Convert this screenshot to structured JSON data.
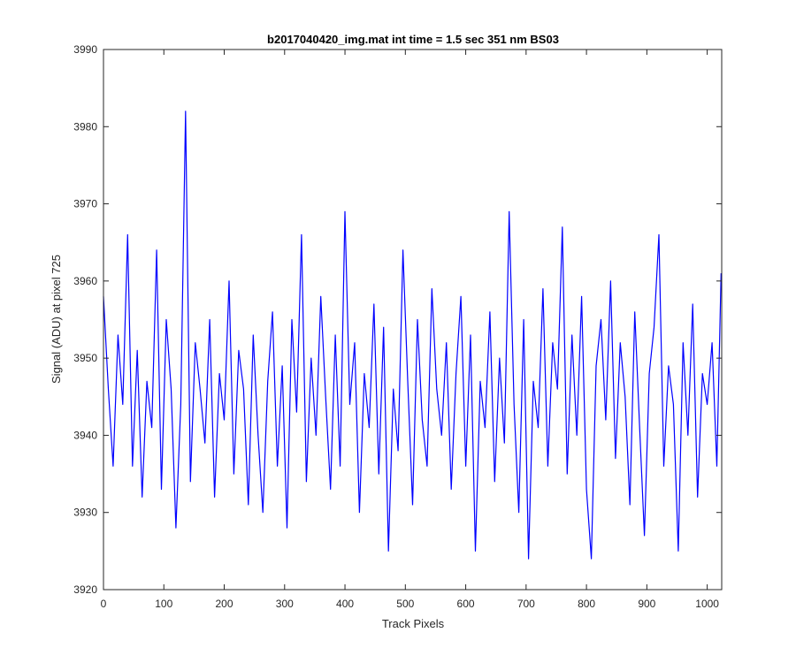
{
  "chart_data": {
    "type": "line",
    "title": "b2017040420_img.mat int time = 1.5 sec  351 nm BS03",
    "xlabel": "Track Pixels",
    "ylabel": "Signal (ADU) at pixel 725",
    "xlim": [
      0,
      1024
    ],
    "ylim": [
      3920,
      3990
    ],
    "xticks": [
      0,
      100,
      200,
      300,
      400,
      500,
      600,
      700,
      800,
      900,
      1000
    ],
    "yticks": [
      3920,
      3930,
      3940,
      3950,
      3960,
      3970,
      3980,
      3990
    ],
    "grid": false,
    "line_color": "#0000ff",
    "series": [
      {
        "points_sampled_every": 8,
        "x": [
          0,
          8,
          16,
          24,
          32,
          40,
          48,
          56,
          64,
          72,
          80,
          88,
          96,
          104,
          112,
          120,
          128,
          136,
          144,
          152,
          160,
          168,
          176,
          184,
          192,
          200,
          208,
          216,
          224,
          232,
          240,
          248,
          256,
          264,
          272,
          280,
          288,
          296,
          304,
          312,
          320,
          328,
          336,
          344,
          352,
          360,
          368,
          376,
          384,
          392,
          400,
          408,
          416,
          424,
          432,
          440,
          448,
          456,
          464,
          472,
          480,
          488,
          496,
          504,
          512,
          520,
          528,
          536,
          544,
          552,
          560,
          568,
          576,
          584,
          592,
          600,
          608,
          616,
          624,
          632,
          640,
          648,
          656,
          664,
          672,
          680,
          688,
          696,
          704,
          712,
          720,
          728,
          736,
          744,
          752,
          760,
          768,
          776,
          784,
          792,
          800,
          808,
          816,
          824,
          832,
          840,
          848,
          856,
          864,
          872,
          880,
          888,
          896,
          904,
          912,
          920,
          928,
          936,
          944,
          952,
          960,
          968,
          976,
          984,
          992,
          1000,
          1008,
          1016,
          1023
        ],
        "y": [
          3958,
          3946,
          3936,
          3953,
          3944,
          3966,
          3936,
          3951,
          3932,
          3947,
          3941,
          3964,
          3933,
          3955,
          3946,
          3928,
          3944,
          3982,
          3934,
          3952,
          3946,
          3939,
          3955,
          3932,
          3948,
          3942,
          3960,
          3935,
          3951,
          3946,
          3931,
          3953,
          3940,
          3930,
          3947,
          3956,
          3936,
          3949,
          3928,
          3955,
          3943,
          3966,
          3934,
          3950,
          3940,
          3958,
          3945,
          3933,
          3953,
          3936,
          3969,
          3944,
          3952,
          3930,
          3948,
          3941,
          3957,
          3935,
          3954,
          3925,
          3946,
          3938,
          3964,
          3947,
          3931,
          3955,
          3942,
          3936,
          3959,
          3946,
          3940,
          3952,
          3933,
          3948,
          3958,
          3936,
          3953,
          3925,
          3947,
          3941,
          3956,
          3934,
          3950,
          3939,
          3969,
          3944,
          3930,
          3955,
          3924,
          3947,
          3941,
          3959,
          3936,
          3952,
          3946,
          3967,
          3935,
          3953,
          3940,
          3958,
          3933,
          3924,
          3949,
          3955,
          3942,
          3960,
          3937,
          3952,
          3945,
          3931,
          3956,
          3941,
          3927,
          3948,
          3954,
          3966,
          3936,
          3949,
          3944,
          3925,
          3952,
          3940,
          3957,
          3932,
          3948,
          3944,
          3952,
          3936,
          3961
        ]
      }
    ]
  }
}
